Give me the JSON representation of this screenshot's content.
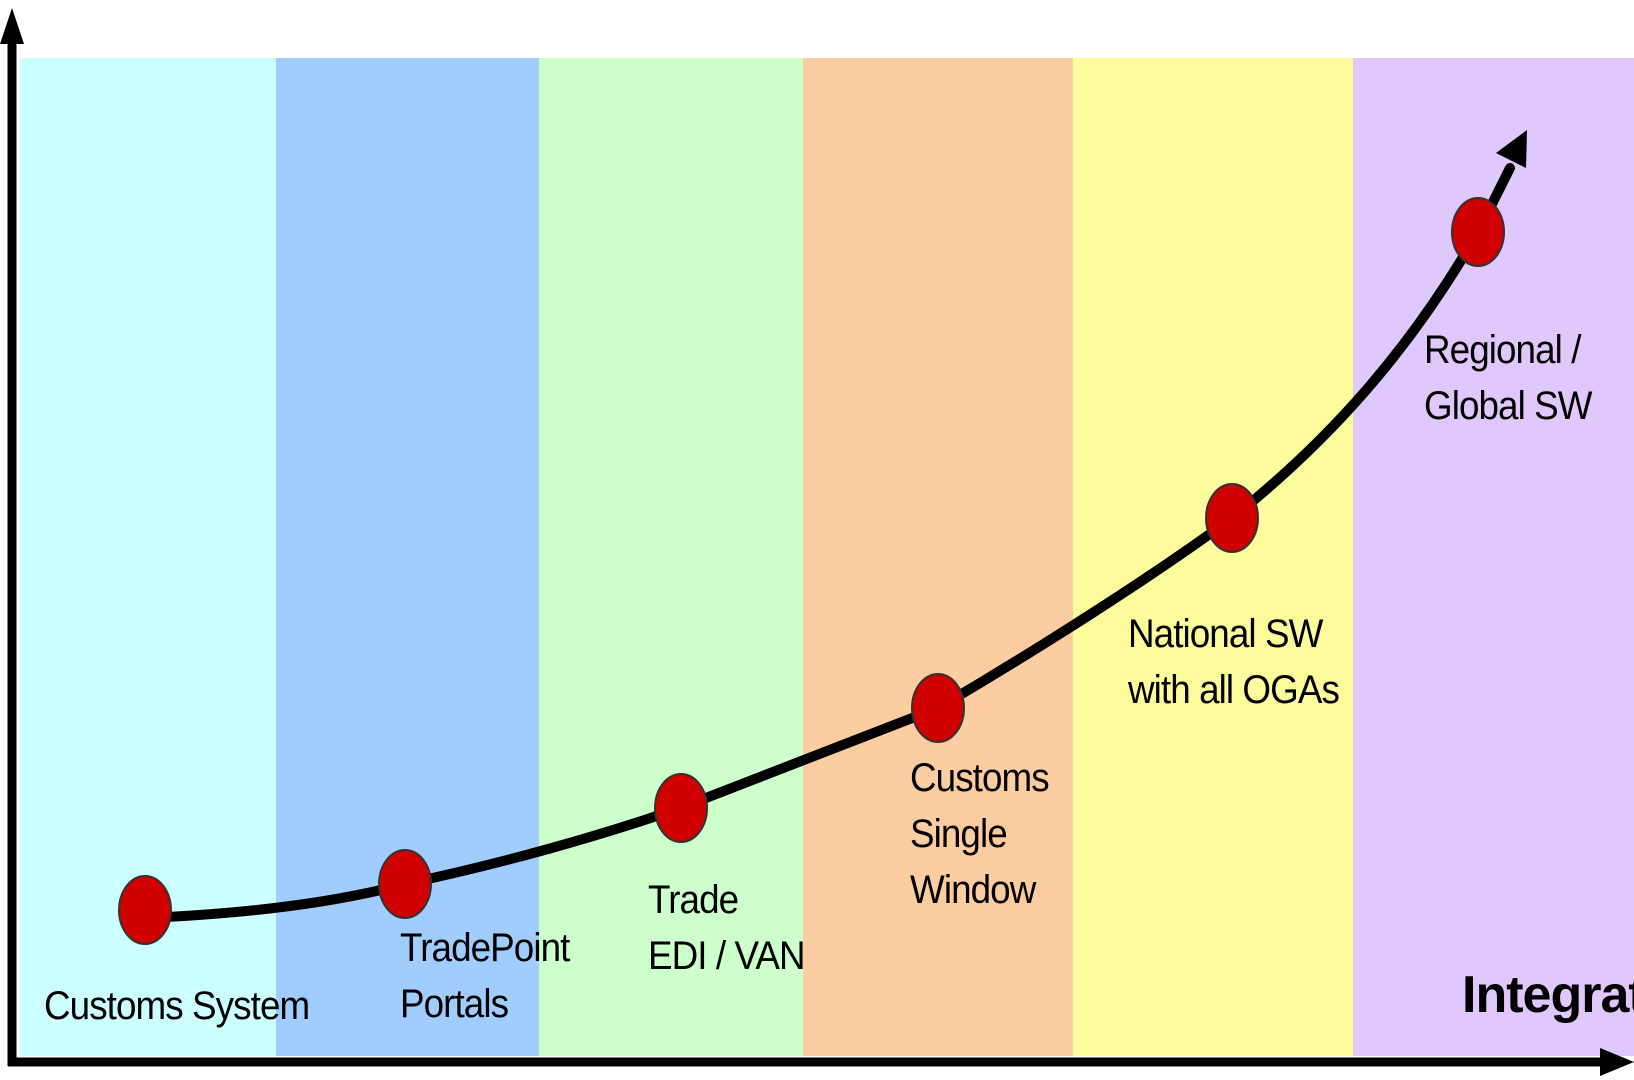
{
  "bands": {
    "colors": [
      "#ccffff",
      "#a0cdfe",
      "#ccffcc",
      "#fccda0",
      "#fdfc9c",
      "#e0c8fc"
    ]
  },
  "curve": {
    "line_color": "#000000",
    "node_color": "#d00000",
    "node_outline": "#333333"
  },
  "stages": [
    {
      "line1": "Customs System",
      "line2": ""
    },
    {
      "line1": "TradePoint",
      "line2": "Portals"
    },
    {
      "line1": "Trade",
      "line2": "EDI / VAN"
    },
    {
      "line1": "Customs",
      "line2": "Single",
      "line3": "Window"
    },
    {
      "line1": "National SW",
      "line2": "with all OGAs"
    },
    {
      "line1": "Regional /",
      "line2": "Global SW"
    }
  ],
  "x_axis": {
    "title": "Integratic"
  },
  "axes": {
    "color": "#000000"
  }
}
